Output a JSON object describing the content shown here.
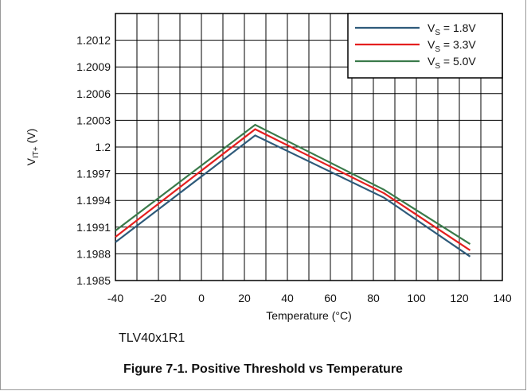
{
  "chart_data": {
    "type": "line",
    "xlabel": "Temperature (°C)",
    "ylabel": {
      "main": "V",
      "sub": "IT+",
      "unit": " (V)"
    },
    "xlim": [
      -40,
      140
    ],
    "ylim": [
      1.1985,
      1.2015
    ],
    "xticks": [
      "-40",
      "-20",
      "0",
      "20",
      "40",
      "60",
      "80",
      "100",
      "120",
      "140"
    ],
    "yticks": [
      "1.1985",
      "1.1988",
      "1.1991",
      "1.1994",
      "1.1997",
      "1.2",
      "1.2003",
      "1.2006",
      "1.2009",
      "1.2012"
    ],
    "grid": true,
    "legend_position": "top-right",
    "x": [
      -40,
      25,
      85,
      125
    ],
    "series": [
      {
        "name_main": "V",
        "name_sub": "S",
        "name_rest": " = 1.8V",
        "color": "#2e5a7a",
        "values": [
          1.19893,
          1.20013,
          1.19943,
          1.19877
        ]
      },
      {
        "name_main": "V",
        "name_sub": "S",
        "name_rest": " = 3.3V",
        "color": "#e41f1f",
        "values": [
          1.19899,
          1.2002,
          1.19948,
          1.19884
        ]
      },
      {
        "name_main": "V",
        "name_sub": "S",
        "name_rest": " = 5.0V",
        "color": "#3a7a4a",
        "values": [
          1.19906,
          1.20025,
          1.19952,
          1.19891
        ]
      }
    ]
  },
  "device_label": "TLV40x1R1",
  "caption": "Figure 7-1. Positive Threshold vs Temperature"
}
